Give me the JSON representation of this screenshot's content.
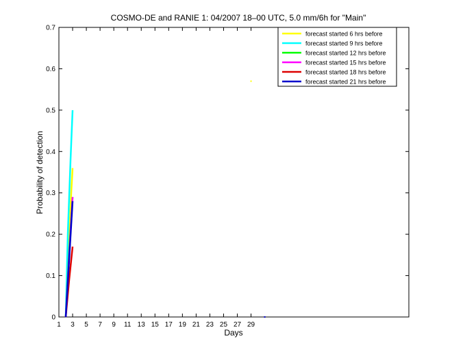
{
  "chart_data": {
    "type": "line",
    "title": "COSMO-DE and RANIE 1: 04/2007 18–00 UTC, 5.0 mm/6h for \"Main\"",
    "xlabel": "Days",
    "ylabel": "Probability of detection",
    "xlim": [
      1,
      52
    ],
    "ylim": [
      0,
      0.7
    ],
    "xticks": [
      1,
      3,
      5,
      7,
      9,
      11,
      13,
      15,
      17,
      19,
      21,
      23,
      25,
      27,
      29
    ],
    "yticks": [
      0,
      0.1,
      0.2,
      0.3,
      0.4,
      0.5,
      0.6,
      0.7
    ],
    "legend_position": "top-right",
    "grid": false,
    "series": [
      {
        "name": "forecast started 6 hrs before",
        "color": "#ffff00",
        "x": [
          2,
          2.4,
          2.8,
          3.0
        ],
        "y": [
          0.0,
          0.16,
          0.3,
          0.36
        ],
        "markers": [
          {
            "x": 29,
            "y": 0.57
          }
        ]
      },
      {
        "name": "forecast started 9 hrs before",
        "color": "#00ffff",
        "x": [
          2,
          2.3,
          2.7,
          3.0
        ],
        "y": [
          0.0,
          0.2,
          0.38,
          0.5
        ],
        "markers": []
      },
      {
        "name": "forecast started 12 hrs before",
        "color": "#00ff00",
        "x": [
          2,
          2.5,
          3.0
        ],
        "y": [
          0.0,
          0.16,
          0.29
        ],
        "markers": []
      },
      {
        "name": "forecast started 15 hrs before",
        "color": "#ff00ff",
        "x": [
          2,
          2.5,
          3.0
        ],
        "y": [
          0.0,
          0.15,
          0.29
        ],
        "markers": []
      },
      {
        "name": "forecast started 18 hrs before",
        "color": "#dd0000",
        "x": [
          2,
          2.5,
          3.0
        ],
        "y": [
          0.0,
          0.09,
          0.17
        ],
        "markers": []
      },
      {
        "name": "forecast started 21 hrs before",
        "color": "#0000cc",
        "x": [
          2,
          2.5,
          3.0
        ],
        "y": [
          0.0,
          0.14,
          0.28
        ],
        "markers": [
          {
            "x": 31,
            "y": 0.0
          }
        ]
      }
    ]
  }
}
